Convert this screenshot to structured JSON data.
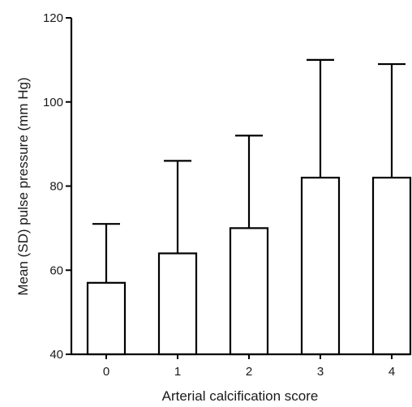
{
  "chart_data": {
    "type": "bar",
    "title": "",
    "xlabel": "Arterial calcification score",
    "ylabel": "Mean (SD) pulse pressure (mm Hg)",
    "categories": [
      "0",
      "1",
      "2",
      "3",
      "4"
    ],
    "values": [
      57,
      64,
      70,
      82,
      82
    ],
    "error_upper": [
      71,
      86,
      92,
      110,
      109
    ],
    "ylim": [
      40,
      120
    ],
    "yticks": [
      40,
      60,
      80,
      100,
      120
    ],
    "grid": false,
    "bar_fill": "#ffffff",
    "stroke_color": "#000000"
  }
}
